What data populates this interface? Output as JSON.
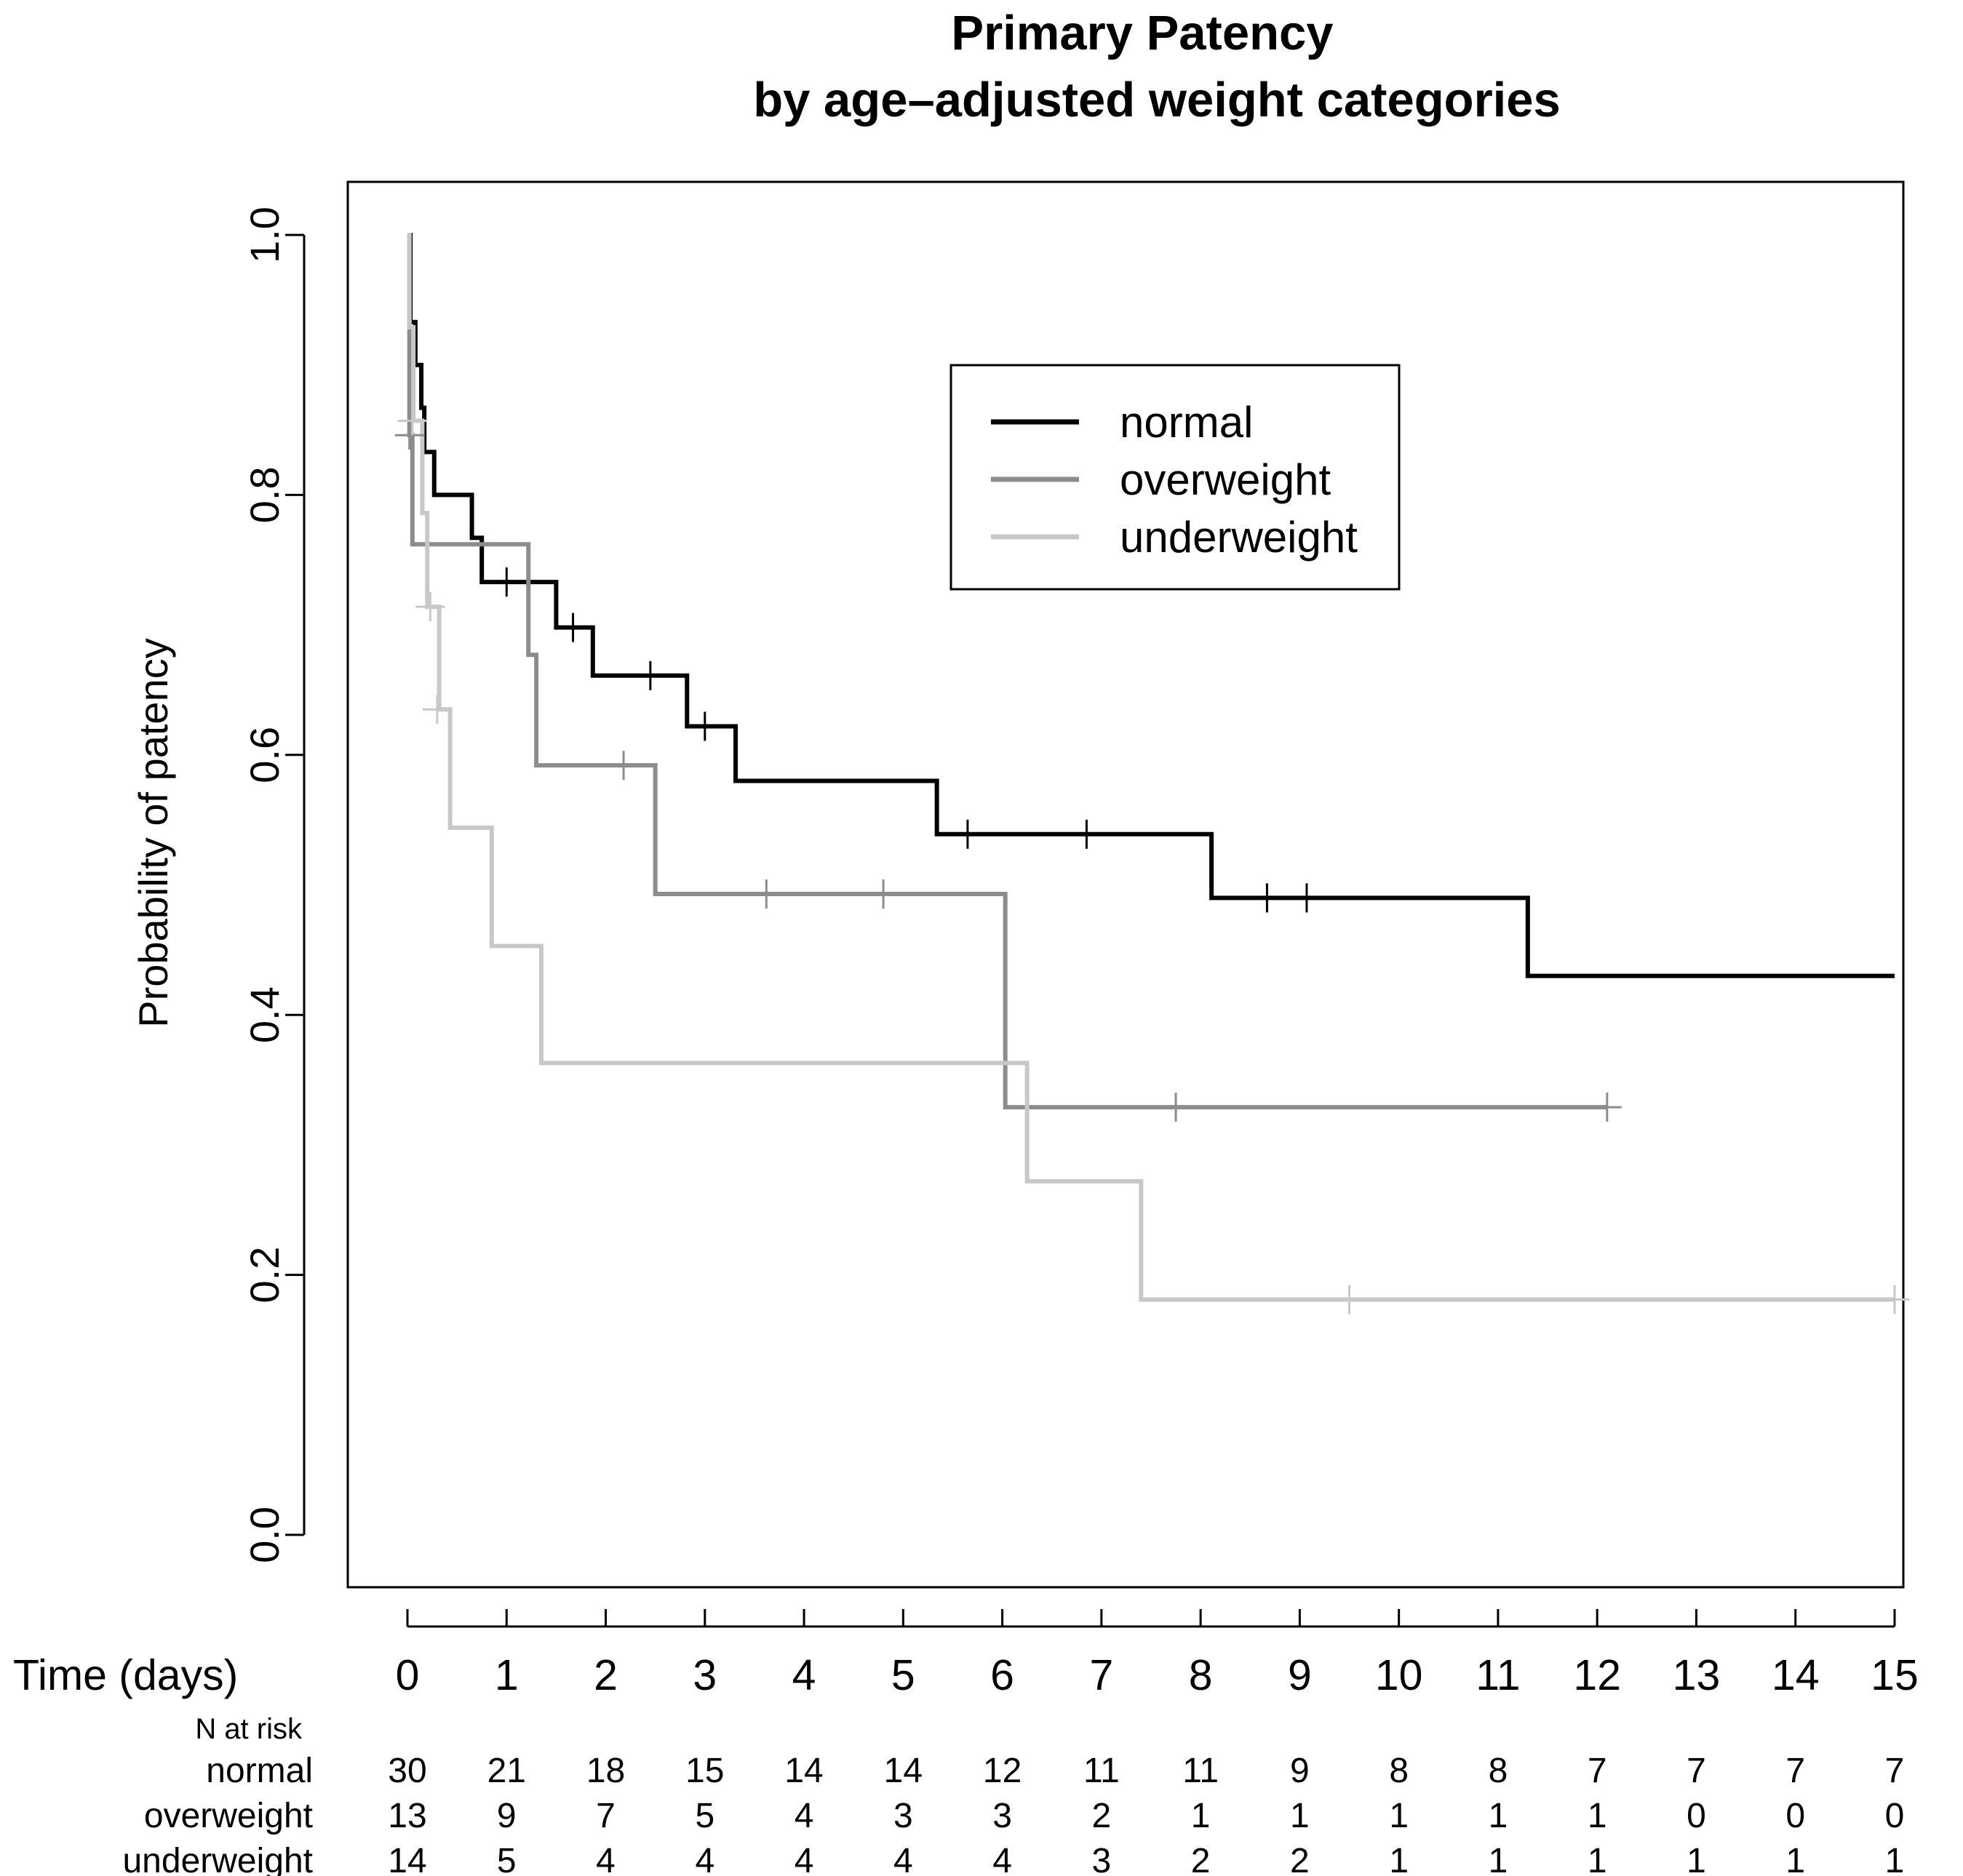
{
  "chart_data": {
    "type": "line",
    "subtype": "kaplan-meier step curves",
    "title_lines": [
      "Primary Patency",
      "by age–adjusted weight categories"
    ],
    "xlabel": "Time (days)",
    "ylabel": "Probability of patency",
    "xlim": [
      0,
      15
    ],
    "ylim": [
      0,
      1
    ],
    "x_ticks": [
      0,
      1,
      2,
      3,
      4,
      5,
      6,
      7,
      8,
      9,
      10,
      11,
      12,
      13,
      14,
      15
    ],
    "x_tick_labels": [
      "0",
      "1",
      "2",
      "3",
      "4",
      "5",
      "6",
      "7",
      "8",
      "9",
      "10",
      "11",
      "12",
      "13",
      "14",
      "15"
    ],
    "y_ticks": [
      0,
      0.2,
      0.4,
      0.6,
      0.8,
      1
    ],
    "y_tick_labels": [
      "0.0",
      "0.2",
      "0.4",
      "0.6",
      "0.8",
      "1.0"
    ],
    "grid": false,
    "legend_position": "top-right",
    "series": [
      {
        "name": "normal",
        "color": "#000000",
        "steps": [
          [
            0,
            1.0
          ],
          [
            0.03,
            0.933
          ],
          [
            0.08,
            0.9
          ],
          [
            0.14,
            0.867
          ],
          [
            0.17,
            0.833
          ],
          [
            0.27,
            0.8
          ],
          [
            0.65,
            0.767
          ],
          [
            0.75,
            0.733
          ],
          [
            1.5,
            0.698
          ],
          [
            1.87,
            0.661
          ],
          [
            2.82,
            0.622
          ],
          [
            3.31,
            0.58
          ],
          [
            5.34,
            0.539
          ],
          [
            8.11,
            0.49
          ],
          [
            11.3,
            0.43
          ]
        ],
        "end": 15.0,
        "censored": [
          [
            1.0,
            0.733
          ],
          [
            1.67,
            0.698
          ],
          [
            2.45,
            0.661
          ],
          [
            3.0,
            0.622
          ],
          [
            5.65,
            0.539
          ],
          [
            6.85,
            0.539
          ],
          [
            8.67,
            0.49
          ],
          [
            9.07,
            0.49
          ]
        ]
      },
      {
        "name": "overweight",
        "color": "#8c8c8c",
        "steps": [
          [
            0,
            1.0
          ],
          [
            0.02,
            0.846
          ],
          [
            0.05,
            0.762
          ],
          [
            1.22,
            0.677
          ],
          [
            1.3,
            0.592
          ],
          [
            2.5,
            0.493
          ],
          [
            6.03,
            0.329
          ]
        ],
        "end": 12.1,
        "censored": [
          [
            0.02,
            0.846
          ],
          [
            2.18,
            0.592
          ],
          [
            3.62,
            0.493
          ],
          [
            4.8,
            0.493
          ],
          [
            7.75,
            0.329
          ],
          [
            12.1,
            0.329
          ]
        ]
      },
      {
        "name": "underweight",
        "color": "#c8c8c8",
        "steps": [
          [
            0,
            1.0
          ],
          [
            0.02,
            0.929
          ],
          [
            0.06,
            0.857
          ],
          [
            0.15,
            0.786
          ],
          [
            0.2,
            0.714
          ],
          [
            0.32,
            0.635
          ],
          [
            0.43,
            0.544
          ],
          [
            0.85,
            0.453
          ],
          [
            1.35,
            0.363
          ],
          [
            6.25,
            0.272
          ],
          [
            7.4,
            0.181
          ]
        ],
        "end": 15.0,
        "censored": [
          [
            0.05,
            0.857
          ],
          [
            0.23,
            0.714
          ],
          [
            0.3,
            0.635
          ],
          [
            9.5,
            0.181
          ],
          [
            15.0,
            0.181
          ]
        ]
      }
    ],
    "risk_table": {
      "header": "N at risk",
      "times": [
        0,
        1,
        2,
        3,
        4,
        5,
        6,
        7,
        8,
        9,
        10,
        11,
        12,
        13,
        14,
        15
      ],
      "rows": [
        {
          "label": "normal",
          "values": [
            "30",
            "21",
            "18",
            "15",
            "14",
            "14",
            "12",
            "11",
            "11",
            "9",
            "8",
            "8",
            "7",
            "7",
            "7",
            "7"
          ]
        },
        {
          "label": "overweight",
          "values": [
            "13",
            "9",
            "7",
            "5",
            "4",
            "3",
            "3",
            "2",
            "1",
            "1",
            "1",
            "1",
            "1",
            "0",
            "0",
            "0"
          ]
        },
        {
          "label": "underweight",
          "values": [
            "14",
            "5",
            "4",
            "4",
            "4",
            "4",
            "4",
            "3",
            "2",
            "2",
            "1",
            "1",
            "1",
            "1",
            "1",
            "1"
          ]
        }
      ]
    }
  }
}
